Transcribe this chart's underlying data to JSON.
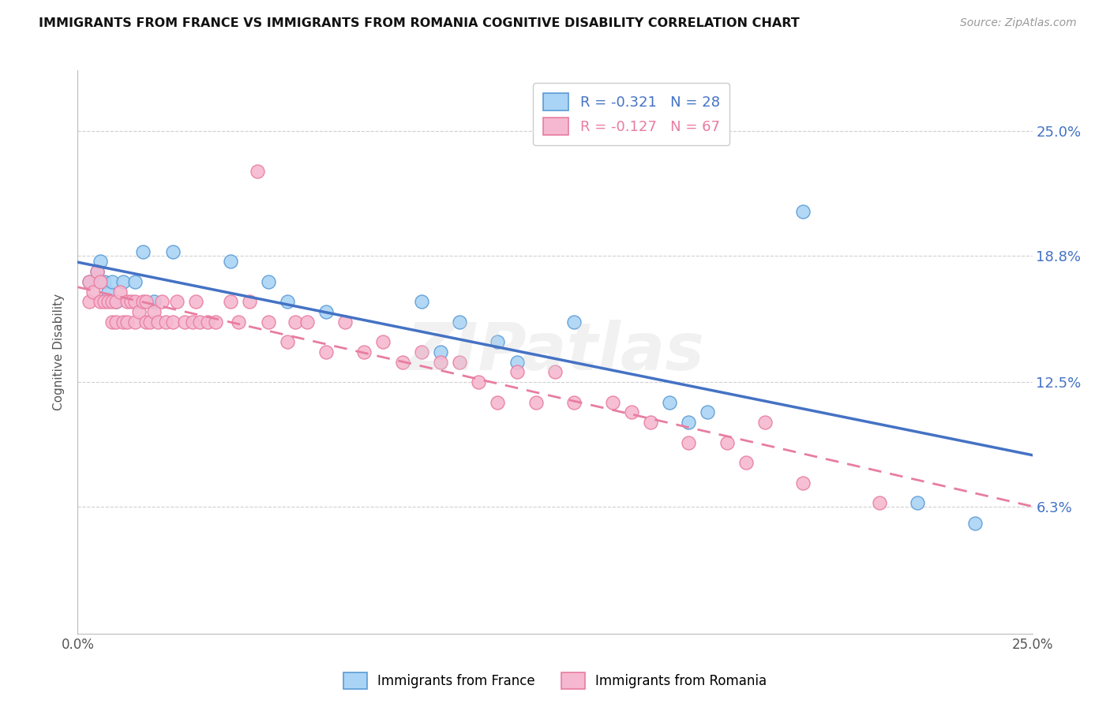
{
  "title": "IMMIGRANTS FROM FRANCE VS IMMIGRANTS FROM ROMANIA COGNITIVE DISABILITY CORRELATION CHART",
  "source": "Source: ZipAtlas.com",
  "ylabel": "Cognitive Disability",
  "ytick_labels": [
    "25.0%",
    "18.8%",
    "12.5%",
    "6.3%"
  ],
  "ytick_values": [
    0.25,
    0.188,
    0.125,
    0.063
  ],
  "xlim": [
    0.0,
    0.25
  ],
  "ylim": [
    0.0,
    0.28
  ],
  "france_R": -0.321,
  "france_N": 28,
  "romania_R": -0.127,
  "romania_N": 67,
  "france_color": "#aad4f5",
  "romania_color": "#f5b8d0",
  "france_edge_color": "#5b9bd5",
  "romania_edge_color": "#e87da0",
  "france_line_color": "#4472c4",
  "romania_line_color": "#e87da0",
  "france_scatter_x": [
    0.003,
    0.005,
    0.006,
    0.007,
    0.008,
    0.009,
    0.01,
    0.012,
    0.015,
    0.017,
    0.02,
    0.025,
    0.04,
    0.05,
    0.055,
    0.065,
    0.09,
    0.095,
    0.1,
    0.11,
    0.115,
    0.13,
    0.155,
    0.16,
    0.165,
    0.19,
    0.22,
    0.235
  ],
  "france_scatter_y": [
    0.175,
    0.18,
    0.185,
    0.175,
    0.17,
    0.175,
    0.165,
    0.175,
    0.175,
    0.19,
    0.165,
    0.19,
    0.185,
    0.175,
    0.165,
    0.16,
    0.165,
    0.14,
    0.155,
    0.145,
    0.135,
    0.155,
    0.115,
    0.105,
    0.11,
    0.21,
    0.065,
    0.055
  ],
  "romania_scatter_x": [
    0.003,
    0.003,
    0.004,
    0.005,
    0.006,
    0.006,
    0.007,
    0.008,
    0.009,
    0.009,
    0.01,
    0.01,
    0.011,
    0.012,
    0.013,
    0.013,
    0.014,
    0.015,
    0.015,
    0.016,
    0.017,
    0.018,
    0.018,
    0.019,
    0.02,
    0.021,
    0.022,
    0.023,
    0.025,
    0.026,
    0.028,
    0.03,
    0.031,
    0.032,
    0.034,
    0.036,
    0.04,
    0.042,
    0.045,
    0.047,
    0.05,
    0.055,
    0.057,
    0.06,
    0.065,
    0.07,
    0.075,
    0.08,
    0.085,
    0.09,
    0.095,
    0.1,
    0.105,
    0.11,
    0.115,
    0.12,
    0.125,
    0.13,
    0.14,
    0.145,
    0.15,
    0.16,
    0.17,
    0.175,
    0.18,
    0.19,
    0.21
  ],
  "romania_scatter_y": [
    0.165,
    0.175,
    0.17,
    0.18,
    0.165,
    0.175,
    0.165,
    0.165,
    0.155,
    0.165,
    0.155,
    0.165,
    0.17,
    0.155,
    0.165,
    0.155,
    0.165,
    0.155,
    0.165,
    0.16,
    0.165,
    0.155,
    0.165,
    0.155,
    0.16,
    0.155,
    0.165,
    0.155,
    0.155,
    0.165,
    0.155,
    0.155,
    0.165,
    0.155,
    0.155,
    0.155,
    0.165,
    0.155,
    0.165,
    0.23,
    0.155,
    0.145,
    0.155,
    0.155,
    0.14,
    0.155,
    0.14,
    0.145,
    0.135,
    0.14,
    0.135,
    0.135,
    0.125,
    0.115,
    0.13,
    0.115,
    0.13,
    0.115,
    0.115,
    0.11,
    0.105,
    0.095,
    0.095,
    0.085,
    0.105,
    0.075,
    0.065
  ],
  "background_color": "#ffffff",
  "grid_color": "#d0d0d0",
  "watermark": "ZIPatlas"
}
